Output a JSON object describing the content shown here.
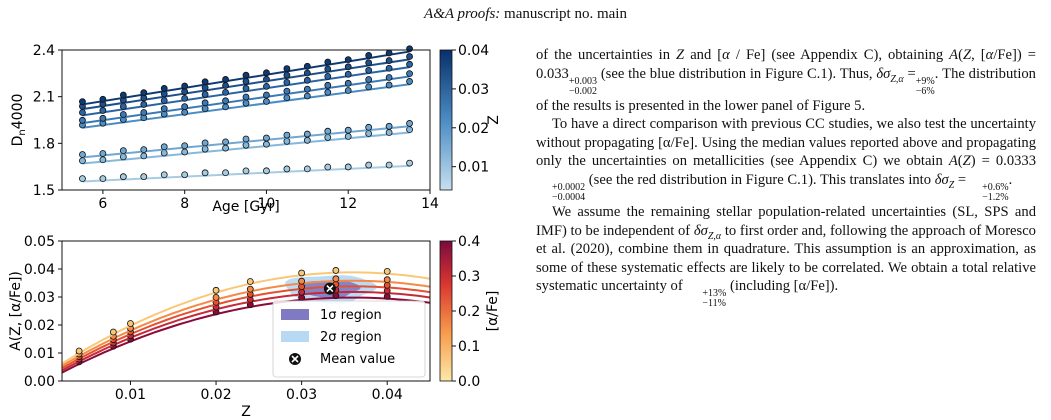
{
  "header": {
    "journal": "A&A proofs:",
    "manuscript": "manuscript no. main"
  },
  "chart_data": [
    {
      "type": "scatter",
      "title": "",
      "xlabel": "Age [Gyr]",
      "ylabel": "D_n4000",
      "xlim": [
        5,
        14
      ],
      "ylim": [
        1.5,
        2.4
      ],
      "xticks": [
        6,
        8,
        10,
        12,
        14
      ],
      "yticks": [
        1.5,
        1.8,
        2.1,
        2.4
      ],
      "ytick_labels": [
        "1.5",
        "1.8",
        "2.1",
        "2.4"
      ],
      "colorbar": {
        "label": "Z",
        "range": [
          0.004,
          0.04
        ],
        "ticks": [
          "0.01",
          "0.02",
          "0.03",
          "0.04"
        ]
      },
      "x": [
        5.5,
        6.0,
        6.5,
        7.0,
        7.5,
        8.0,
        8.5,
        9.0,
        9.5,
        10.0,
        10.5,
        11.0,
        11.5,
        12.0,
        12.5,
        13.0,
        13.5
      ],
      "series": [
        {
          "z": 0.004,
          "color": "#a6cce4",
          "fit": [
            1.555,
            1.655
          ]
        },
        {
          "z": 0.008,
          "color": "#85b9dc",
          "fit": [
            1.67,
            1.87
          ]
        },
        {
          "z": 0.01,
          "color": "#6fa7d3",
          "fit": [
            1.71,
            1.91
          ]
        },
        {
          "z": 0.02,
          "color": "#4b8cc4",
          "fit": [
            1.9,
            2.18
          ]
        },
        {
          "z": 0.024,
          "color": "#3b78b6",
          "fit": [
            1.93,
            2.23
          ]
        },
        {
          "z": 0.03,
          "color": "#2a64a4",
          "fit": [
            1.98,
            2.29
          ]
        },
        {
          "z": 0.034,
          "color": "#1d4f8a",
          "fit": [
            2.02,
            2.34
          ]
        },
        {
          "z": 0.04,
          "color": "#0e3a74",
          "fit": [
            2.05,
            2.39
          ]
        }
      ]
    },
    {
      "type": "line",
      "title": "",
      "xlabel": "Z",
      "ylabel": "A(Z, [α/Fe])",
      "xlim": [
        0.002,
        0.045
      ],
      "ylim": [
        0.0,
        0.05
      ],
      "xticks": [
        0.01,
        0.02,
        0.03,
        0.04
      ],
      "xtick_labels": [
        "0.01",
        "0.02",
        "0.03",
        "0.04"
      ],
      "yticks": [
        0.0,
        0.01,
        0.02,
        0.03,
        0.04,
        0.05
      ],
      "ytick_labels": [
        "0.00",
        "0.01",
        "0.02",
        "0.03",
        "0.04",
        "0.05"
      ],
      "colorbar": {
        "label": "[α/Fe]",
        "range": [
          0.0,
          0.4
        ],
        "ticks": [
          "0.0",
          "0.1",
          "0.2",
          "0.3",
          "0.4"
        ]
      },
      "z_points": [
        0.004,
        0.008,
        0.01,
        0.02,
        0.024,
        0.03,
        0.034,
        0.04
      ],
      "series": [
        {
          "alpha_fe": 0.0,
          "color": "#8b0a3a",
          "peak": 0.0298
        },
        {
          "alpha_fe": 0.1,
          "color": "#c62a37",
          "peak": 0.0318
        },
        {
          "alpha_fe": 0.2,
          "color": "#e45132",
          "peak": 0.0338
        },
        {
          "alpha_fe": 0.3,
          "color": "#f48a45",
          "peak": 0.0358
        },
        {
          "alpha_fe": 0.4,
          "color": "#f9c877",
          "peak": 0.0388
        }
      ],
      "mean_value": {
        "z": 0.0333,
        "a": 0.033
      },
      "legend": {
        "position": "lower-right",
        "items": [
          "1σ region",
          "2σ region",
          "Mean value"
        ],
        "colors": [
          "#7f7ac2",
          "#b7d9f3",
          "#111111"
        ]
      }
    }
  ],
  "text": {
    "p1_a": "of the uncertainties in",
    "p1_b": "and [",
    "p1_c": "/ Fe] (see Appendix C), obtaining",
    "p1_d": "= 0.033",
    "p1_d_sup": "+0.003",
    "p1_d_sub": "−0.002",
    "p1_e": "(see the blue distribution in Figure C.1). Thus,",
    "p1_f": "=",
    "p1_f_sup": "+9%",
    "p1_f_sub": "−6%",
    "p1_g": ". The distribution of the results is presented in the lower panel of Figure 5.",
    "p2_a": "To have a direct comparison with previous CC studies, we also test the uncertainty without propagating [α/Fe]. Using the median values reported above and propagating only the uncertainties on metallicities (see Appendix C) we obtain",
    "p2_b": "= 0.0333",
    "p2_b_sup": "+0.0002",
    "p2_b_sub": "−0.0004",
    "p2_c": "(see the red distribution in Figure C.1). This translates into",
    "p2_d": "=",
    "p2_d_sup": "+0.6%",
    "p2_d_sub": "−1.2%",
    "p2_e": ".",
    "p3_a": "We assume the remaining stellar population-related uncertainties (SL, SPS and IMF) to be independent of",
    "p3_b": "to first order and, following the approach of Moresco et al. (2020), combine them in quadrature. This assumption is an approximation, as some of these systematic effects are likely to be correlated. We obtain a total relative systematic uncertainty of",
    "p3_c_sup": "+13%",
    "p3_c_sub": "−11%",
    "p3_d": "(including",
    "p3_e": "[α/Fe])."
  }
}
